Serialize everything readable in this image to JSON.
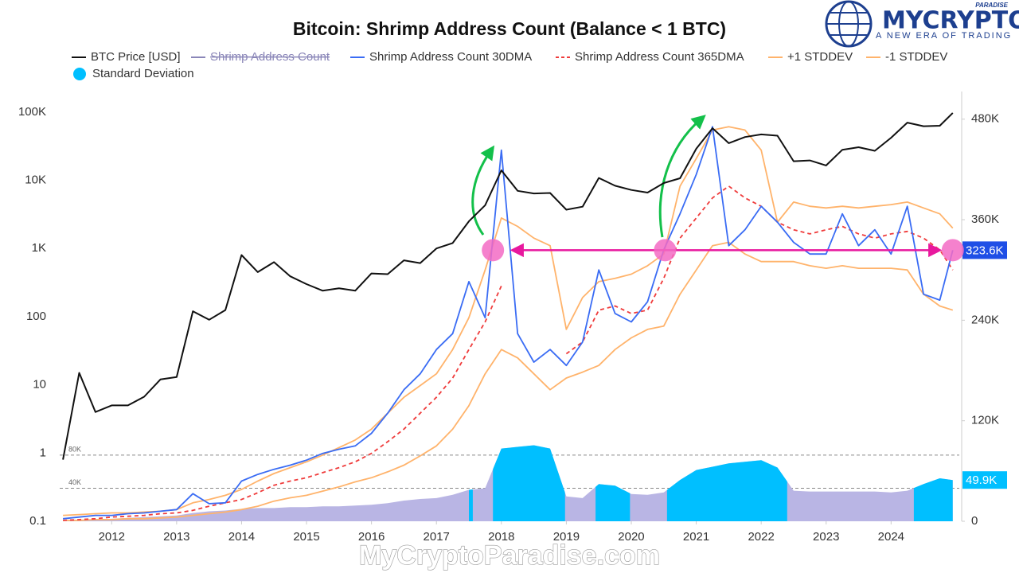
{
  "chart_data": {
    "type": "line",
    "title": "Bitcoin: Shrimp Address Count (Balance < 1 BTC)",
    "x": [
      2011.25,
      2011.5,
      2011.75,
      2012,
      2012.25,
      2012.5,
      2012.75,
      2013,
      2013.25,
      2013.5,
      2013.75,
      2014,
      2014.25,
      2014.5,
      2014.75,
      2015,
      2015.25,
      2015.5,
      2015.75,
      2016,
      2016.25,
      2016.5,
      2016.75,
      2017,
      2017.25,
      2017.5,
      2017.75,
      2018,
      2018.25,
      2018.5,
      2018.75,
      2019,
      2019.25,
      2019.5,
      2019.75,
      2020,
      2020.25,
      2020.5,
      2020.75,
      2021,
      2021.25,
      2021.5,
      2021.75,
      2022,
      2022.25,
      2022.5,
      2022.75,
      2023,
      2023.25,
      2023.5,
      2023.75,
      2024,
      2024.25,
      2024.5,
      2024.75,
      2024.95
    ],
    "xlim": [
      2011.2,
      2025.05
    ],
    "xticks": [
      2012,
      2013,
      2014,
      2015,
      2016,
      2017,
      2018,
      2019,
      2020,
      2021,
      2022,
      2023,
      2024
    ],
    "y_scale": "log",
    "ylim": [
      0.1,
      200000
    ],
    "yticks": [
      0.1,
      1,
      10,
      100,
      {
        "value": 1000,
        "label": "1K"
      },
      {
        "value": 10000,
        "label": "10K"
      },
      {
        "value": 100000,
        "label": "100K"
      }
    ],
    "y2lim": [
      0,
      513000
    ],
    "y2ticks": [
      0,
      {
        "value": 120000,
        "label": "120K"
      },
      {
        "value": 240000,
        "label": "240K"
      },
      {
        "value": 360000,
        "label": "360K"
      },
      {
        "value": 480000,
        "label": "480K"
      }
    ],
    "y3lim": [
      0,
      520000
    ],
    "y3ticks": [
      {
        "value": 40000,
        "label": "40K"
      },
      {
        "value": 80000,
        "label": "80K"
      }
    ],
    "series": [
      {
        "name": "BTC Price [USD]",
        "color": "#111111",
        "style": "solid",
        "axis": "y",
        "values": [
          0.8,
          15,
          4,
          5,
          5,
          6.7,
          12,
          13,
          120,
          90,
          125,
          800,
          450,
          630,
          390,
          300,
          240,
          260,
          240,
          430,
          420,
          670,
          610,
          1000,
          1200,
          2500,
          4300,
          14000,
          7000,
          6400,
          6500,
          3700,
          4100,
          10800,
          8300,
          7200,
          6600,
          9100,
          10700,
          29000,
          58000,
          35000,
          43000,
          47000,
          45000,
          19000,
          19500,
          16500,
          28000,
          30500,
          27000,
          42000,
          70000,
          62000,
          63000,
          97000
        ]
      },
      {
        "name": "Shrimp Address Count",
        "color": "#8a86b8",
        "style": "solid",
        "hidden": true
      },
      {
        "name": "Shrimp Address Count 30DMA",
        "color": "#3a6cf4",
        "style": "solid",
        "axis": "y2",
        "end_label": "323.6K",
        "values": [
          3000,
          5000,
          7000,
          7000,
          9000,
          10000,
          12000,
          14000,
          33000,
          21000,
          22000,
          48000,
          56000,
          62000,
          67000,
          73000,
          81000,
          86000,
          90000,
          105000,
          129000,
          157000,
          176000,
          205000,
          224000,
          286000,
          243000,
          443000,
          224000,
          190000,
          205000,
          186000,
          214000,
          300000,
          248000,
          238000,
          262000,
          324000,
          367000,
          414000,
          471000,
          329000,
          348000,
          376000,
          357000,
          333000,
          319000,
          319000,
          367000,
          329000,
          348000,
          319000,
          376000,
          271000,
          264000,
          323600
        ]
      },
      {
        "name": "Shrimp Address Count 365DMA",
        "color": "#ef3b3b",
        "style": "dashed",
        "axis": "y2",
        "values": [
          1000,
          2000,
          3000,
          5000,
          6000,
          7000,
          9000,
          10000,
          13000,
          18000,
          22000,
          26000,
          34000,
          43000,
          48000,
          52000,
          58000,
          64000,
          71000,
          81000,
          95000,
          110000,
          129000,
          148000,
          171000,
          205000,
          238000,
          281000,
          null,
          null,
          null,
          200000,
          214000,
          252000,
          257000,
          248000,
          252000,
          290000,
          338000,
          362000,
          386000,
          400000,
          386000,
          376000,
          357000,
          348000,
          343000,
          348000,
          352000,
          343000,
          338000,
          343000,
          346000,
          338000,
          324000,
          300000
        ]
      },
      {
        "name": "+1 STDDEV",
        "color": "#ffb36b",
        "style": "solid",
        "axis": "y2",
        "values": [
          7000,
          8000,
          9000,
          10000,
          10000,
          11000,
          12000,
          14000,
          22000,
          26000,
          31000,
          38000,
          48000,
          57000,
          64000,
          71000,
          79000,
          88000,
          97000,
          110000,
          129000,
          148000,
          162000,
          176000,
          205000,
          243000,
          300000,
          362000,
          352000,
          338000,
          329000,
          229000,
          267000,
          286000,
          290000,
          295000,
          305000,
          319000,
          400000,
          433000,
          467000,
          471000,
          467000,
          443000,
          357000,
          381000,
          376000,
          374000,
          376000,
          374000,
          376000,
          378000,
          381000,
          374000,
          367000,
          350000
        ]
      },
      {
        "name": "-1 STDDEV",
        "color": "#ffb36b",
        "style": "solid",
        "axis": "y2",
        "values": [
          1000,
          1000,
          2000,
          2000,
          3000,
          3000,
          4000,
          5000,
          7000,
          9000,
          11000,
          14000,
          18000,
          24000,
          28000,
          31000,
          36000,
          41000,
          47000,
          52000,
          59000,
          67000,
          78000,
          90000,
          110000,
          138000,
          176000,
          205000,
          195000,
          176000,
          157000,
          171000,
          178000,
          186000,
          205000,
          219000,
          229000,
          233000,
          271000,
          300000,
          329000,
          333000,
          319000,
          310000,
          310000,
          310000,
          305000,
          302000,
          305000,
          302000,
          302000,
          302000,
          300000,
          271000,
          257000,
          252000
        ]
      },
      {
        "name": "Standard Deviation",
        "color": "#00bfff",
        "base_color": "#b9b5e4",
        "style": "area",
        "axis": "y3",
        "end_label": "49.9K",
        "highlight_x_ranges": [
          [
            2017.5,
            2017.56
          ],
          [
            2017.87,
            2018.98
          ],
          [
            2019.45,
            2019.98
          ],
          [
            2020.55,
            2022.4
          ],
          [
            2024.35,
            2024.95
          ]
        ],
        "values": [
          0,
          1000,
          2000,
          3000,
          4000,
          5000,
          6000,
          7000,
          10000,
          12000,
          13000,
          15000,
          16000,
          16000,
          17000,
          17000,
          18000,
          18000,
          19000,
          20000,
          22000,
          25000,
          27000,
          28000,
          32000,
          38000,
          40000,
          88000,
          90000,
          92000,
          88000,
          30000,
          28000,
          45000,
          43000,
          33000,
          32000,
          35000,
          50000,
          62000,
          66000,
          70000,
          72000,
          74000,
          65000,
          37000,
          36000,
          36000,
          36000,
          36000,
          36000,
          35000,
          37000,
          45000,
          52000,
          49900
        ]
      }
    ],
    "markers": {
      "x": [
        2017.87,
        2020.52,
        2024.95
      ],
      "y": [
        323600,
        323600,
        323600
      ],
      "axis": "y2",
      "color": "#f36bc4",
      "arrow_color": "#e8189e"
    }
  },
  "brand": {
    "name": "MYCRYPTO",
    "tag": "PARADISE",
    "slogan": "A NEW ERA OF TRADING"
  },
  "watermark": "MyCryptoParadise.com"
}
